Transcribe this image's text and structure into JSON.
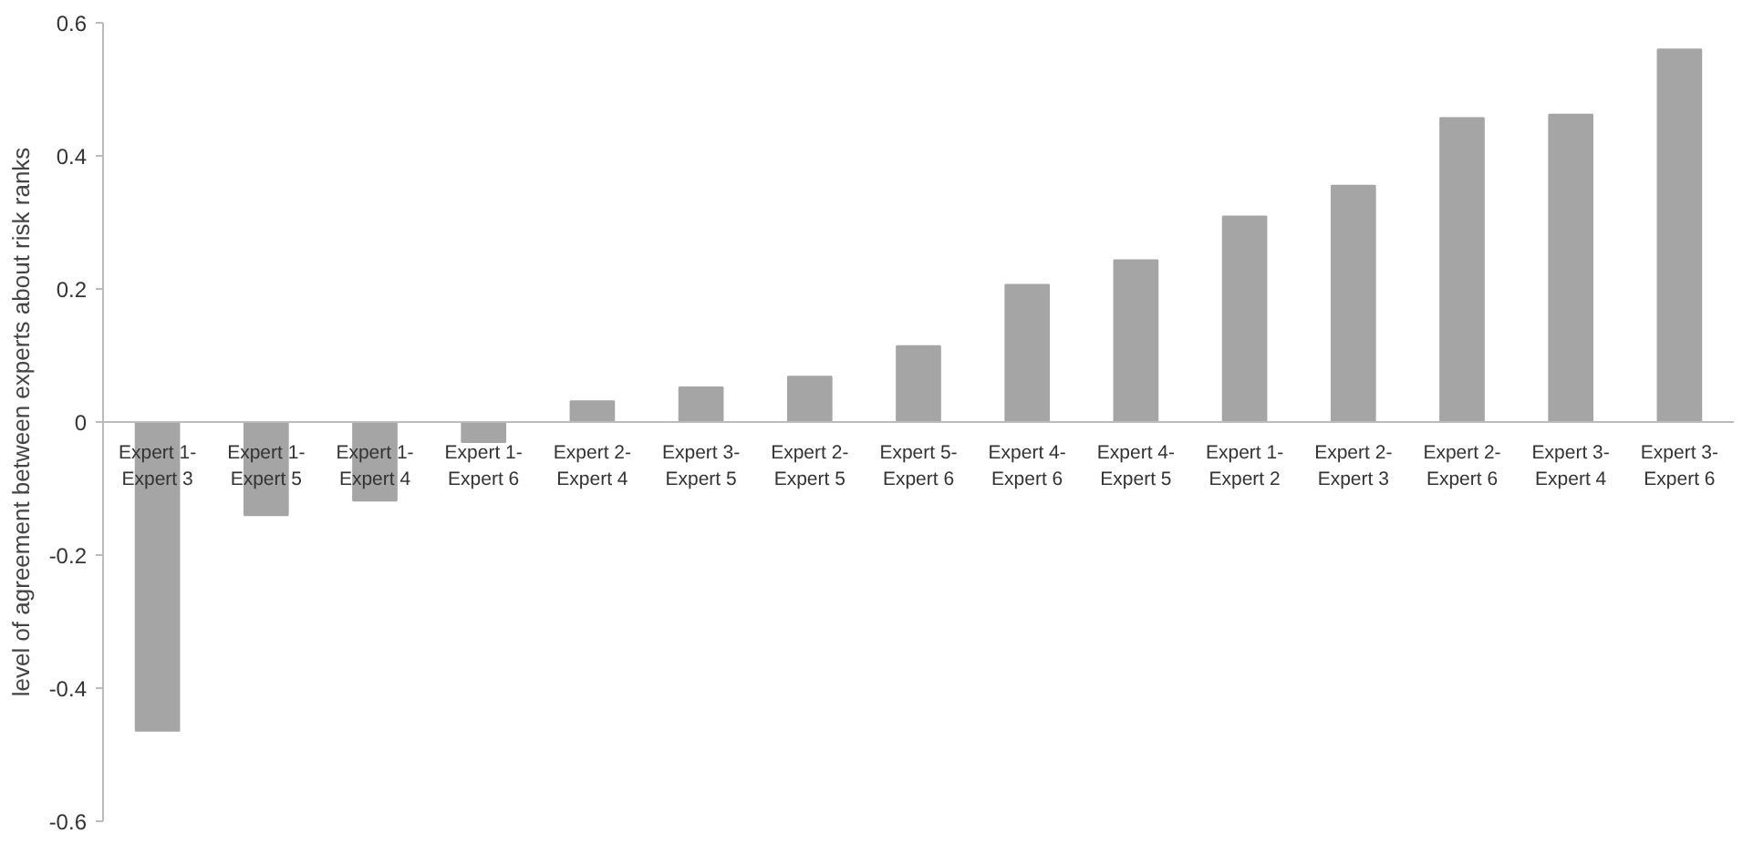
{
  "chart_data": {
    "type": "bar",
    "ylabel": "level of agreement between experts about risk ranks",
    "categories": [
      "Expert 1-Expert 3",
      "Expert 1-Expert 5",
      "Expert 1-Expert 4",
      "Expert 1-Expert 6",
      "Expert 2-Expert 4",
      "Expert 3-Expert 5",
      "Expert 2-Expert 5",
      "Expert 5-Expert 6",
      "Expert 4-Expert 6",
      "Expert 4-Expert 5",
      "Expert 1-Expert 2",
      "Expert 2-Expert 3",
      "Expert 2-Expert 6",
      "Expert 3-Expert 4",
      "Expert 3-Expert 6"
    ],
    "values": [
      -0.464,
      -0.14,
      -0.118,
      -0.03,
      0.031,
      0.052,
      0.068,
      0.114,
      0.206,
      0.243,
      0.309,
      0.355,
      0.457,
      0.462,
      0.56
    ],
    "color": "#a5a5a5",
    "ylim": [
      -0.6,
      0.6
    ],
    "yticks": [
      -0.6,
      -0.4,
      -0.2,
      0,
      0.2,
      0.4,
      0.6
    ],
    "grid": false
  }
}
